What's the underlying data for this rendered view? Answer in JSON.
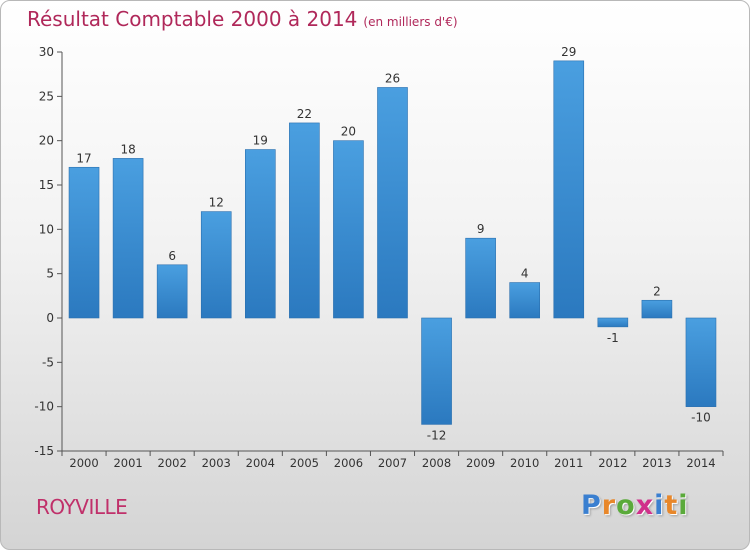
{
  "header": {
    "title": "Résultat Comptable 2000 à 2014",
    "subtitle": "(en milliers d'€)"
  },
  "footer": {
    "commune": "ROYVILLE",
    "logo_letters": [
      "P",
      "r",
      "o",
      "x",
      "i",
      "t",
      "i"
    ],
    "logo_colors": [
      "#3a7fd0",
      "#e8872a",
      "#5aaa3a",
      "#d0308a",
      "#3a7fd0",
      "#e8872a",
      "#5aaa3a"
    ]
  },
  "chart_data": {
    "type": "bar",
    "categories": [
      "2000",
      "2001",
      "2002",
      "2003",
      "2004",
      "2005",
      "2006",
      "2007",
      "2008",
      "2009",
      "2010",
      "2011",
      "2012",
      "2013",
      "2014"
    ],
    "values": [
      17,
      18,
      6,
      12,
      19,
      22,
      20,
      26,
      -12,
      9,
      4,
      29,
      -1,
      2,
      -10
    ],
    "data_labels": [
      "17",
      "18",
      "6",
      "12",
      "19",
      "22",
      "20",
      "26",
      "-12",
      "9",
      "4",
      "29",
      "-1",
      "2",
      "-10"
    ],
    "ylim": [
      -15,
      30
    ],
    "yticks": [
      -15,
      -10,
      -5,
      0,
      5,
      10,
      15,
      20,
      25,
      30
    ],
    "grid": "none",
    "bar_color": "#4a9fe0",
    "bar_color_dark": "#2b79bf"
  }
}
